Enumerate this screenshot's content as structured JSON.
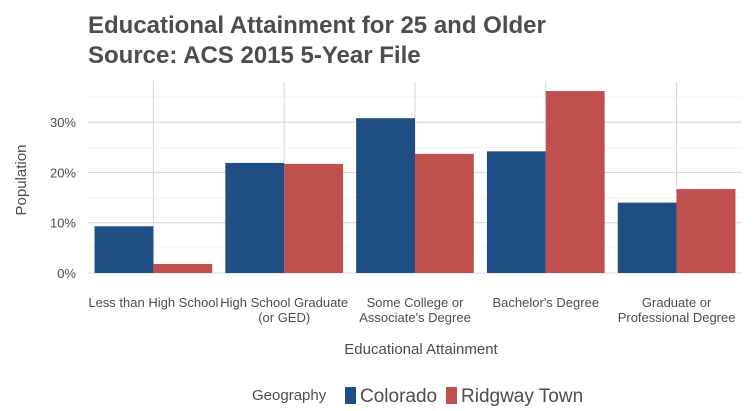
{
  "chart_data": {
    "type": "bar",
    "title": "Educational Attainment for 25 and Older",
    "subtitle": "Source: ACS 2015 5-Year File",
    "xlabel": "Educational Attainment",
    "ylabel": "Population",
    "ylim": [
      0,
      0.38
    ],
    "yticks": [
      {
        "value": 0,
        "label": "0%"
      },
      {
        "value": 0.1,
        "label": "10%"
      },
      {
        "value": 0.2,
        "label": "20%"
      },
      {
        "value": 0.3,
        "label": "30%"
      }
    ],
    "grid": true,
    "legend_position": "bottom",
    "legend_title": "Geography",
    "categories": [
      {
        "label_lines": [
          "Less than High School"
        ]
      },
      {
        "label_lines": [
          "High School Graduate",
          "(or GED)"
        ]
      },
      {
        "label_lines": [
          "Some College or",
          "Associate's Degree"
        ]
      },
      {
        "label_lines": [
          "Bachelor's Degree"
        ]
      },
      {
        "label_lines": [
          "Graduate or",
          "Professional Degree"
        ]
      }
    ],
    "series": [
      {
        "name": "Colorado",
        "color": "#1f4e85",
        "values": [
          0.093,
          0.219,
          0.308,
          0.242,
          0.14
        ]
      },
      {
        "name": "Ridgway Town",
        "color": "#c0504d",
        "values": [
          0.018,
          0.217,
          0.237,
          0.362,
          0.167
        ]
      }
    ]
  }
}
